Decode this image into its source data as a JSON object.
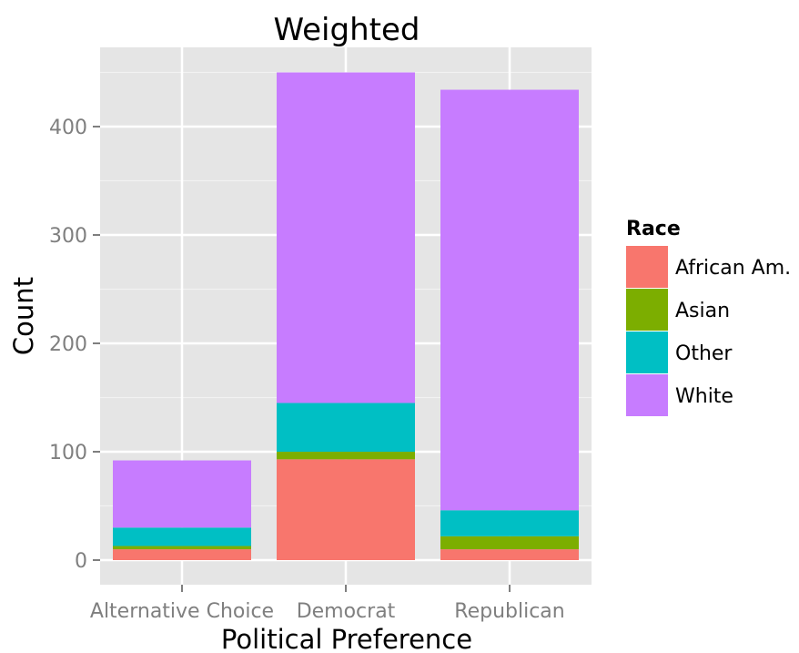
{
  "chart_data": {
    "type": "bar",
    "stacked": true,
    "title": "Weighted",
    "xlabel": "Political Preference",
    "ylabel": "Count",
    "categories": [
      "Alternative Choice",
      "Democrat",
      "Republican"
    ],
    "ylim": [
      0,
      470
    ],
    "yticks": [
      0,
      100,
      200,
      300,
      400
    ],
    "grid": true,
    "legend": {
      "title": "Race",
      "position": "right"
    },
    "series": [
      {
        "name": "African Am.",
        "color": "#F8766D",
        "values": [
          10,
          93,
          10
        ]
      },
      {
        "name": "Asian",
        "color": "#7CAE00",
        "values": [
          3,
          7,
          12
        ]
      },
      {
        "name": "Other",
        "color": "#00BFC4",
        "values": [
          17,
          45,
          24
        ]
      },
      {
        "name": "White",
        "color": "#C77CFF",
        "values": [
          62,
          305,
          388
        ]
      }
    ]
  }
}
